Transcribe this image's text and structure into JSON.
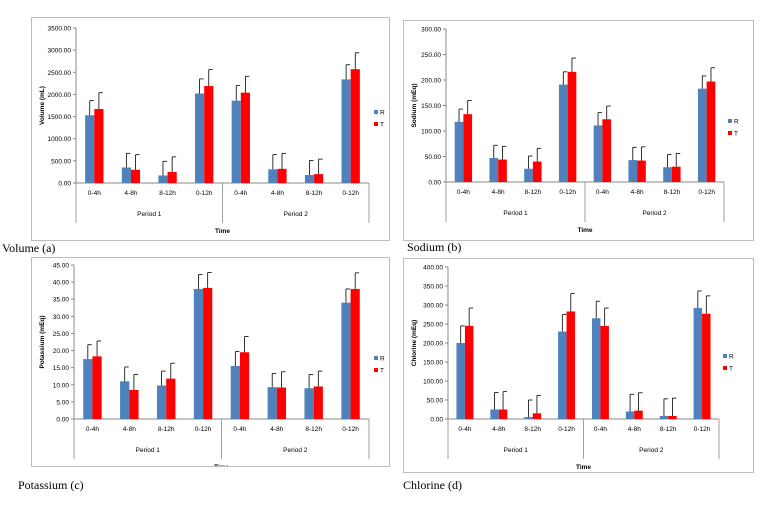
{
  "colors": {
    "R": "#4f81bd",
    "T": "#ff0000",
    "error_bar": "#000000",
    "axis": "#888888"
  },
  "captions": {
    "a": "Volume (a)",
    "b": "Sodium (b)",
    "c": "Potassium (c)",
    "d": "Chlorine (d)"
  },
  "chart_data": [
    {
      "type": "bar",
      "panel": "a",
      "ylabel": "Volume (mL)",
      "xlabel": "Time",
      "ylim": [
        0,
        3500
      ],
      "yticks": [
        "0.00",
        "500.00",
        "1000.00",
        "1500.00",
        "2000.00",
        "2500.00",
        "3000.00",
        "3500.00"
      ],
      "ytick_values": [
        0,
        500,
        1000,
        1500,
        2000,
        2500,
        3000,
        3500
      ],
      "categories": [
        "0-4h",
        "4-8h",
        "8-12h",
        "0-12h",
        "0-4h",
        "4-8h",
        "8-12h",
        "0-12h"
      ],
      "groups": [
        {
          "label": "Period 1",
          "span": [
            0,
            3
          ]
        },
        {
          "label": "Period 2",
          "span": [
            4,
            7
          ]
        }
      ],
      "legend": [
        "R",
        "T"
      ],
      "legend_position": "right",
      "series": [
        {
          "name": "R",
          "values": [
            1530,
            350,
            170,
            2020,
            1860,
            310,
            180,
            2340
          ],
          "error": [
            330,
            320,
            320,
            330,
            340,
            330,
            330,
            330
          ]
        },
        {
          "name": "T",
          "values": [
            1670,
            300,
            250,
            2190,
            2040,
            320,
            200,
            2570
          ],
          "error": [
            370,
            340,
            340,
            370,
            370,
            350,
            340,
            370
          ]
        }
      ]
    },
    {
      "type": "bar",
      "panel": "b",
      "ylabel": "Sodium (mEq)",
      "xlabel": "Time",
      "ylim": [
        0,
        300
      ],
      "yticks": [
        "0.00",
        "50.00",
        "100.00",
        "150.00",
        "200.00",
        "250.00",
        "300.00"
      ],
      "ytick_values": [
        0,
        50,
        100,
        150,
        200,
        250,
        300
      ],
      "categories": [
        "0-4h",
        "4-8h",
        "8-12h",
        "0-12h",
        "0-4h",
        "4-8h",
        "8-12h",
        "0-12h"
      ],
      "groups": [
        {
          "label": "Period 1",
          "span": [
            0,
            3
          ]
        },
        {
          "label": "Period 2",
          "span": [
            4,
            7
          ]
        }
      ],
      "legend": [
        "R",
        "T"
      ],
      "legend_position": "right",
      "series": [
        {
          "name": "R",
          "values": [
            118,
            47,
            26,
            191,
            111,
            43,
            29,
            183
          ],
          "error": [
            25,
            25,
            25,
            25,
            25,
            25,
            25,
            25
          ]
        },
        {
          "name": "T",
          "values": [
            133,
            44,
            40,
            216,
            123,
            42,
            30,
            197
          ],
          "error": [
            27,
            26,
            26,
            27,
            26,
            27,
            26,
            27
          ]
        }
      ]
    },
    {
      "type": "bar",
      "panel": "c",
      "ylabel": "Potassium (mEq)",
      "xlabel": "Time",
      "ylim": [
        0,
        45
      ],
      "yticks": [
        "0.00",
        "5.00",
        "10.00",
        "15.00",
        "20.00",
        "25.00",
        "30.00",
        "35.00",
        "40.00",
        "45.00"
      ],
      "ytick_values": [
        0,
        5,
        10,
        15,
        20,
        25,
        30,
        35,
        40,
        45
      ],
      "categories": [
        "0-4h",
        "4-8h",
        "8-12h",
        "0-12h",
        "0-4h",
        "4-8h",
        "8-12h",
        "0-12h"
      ],
      "groups": [
        {
          "label": "Period 1",
          "span": [
            0,
            3
          ]
        },
        {
          "label": "Period 2",
          "span": [
            4,
            7
          ]
        }
      ],
      "legend": [
        "R",
        "T"
      ],
      "legend_position": "right",
      "series": [
        {
          "name": "R",
          "values": [
            17.5,
            11,
            9.8,
            38,
            15.5,
            9.3,
            9,
            34
          ],
          "error": [
            4.2,
            4.2,
            4.2,
            4.2,
            4.2,
            4,
            4,
            4
          ]
        },
        {
          "name": "T",
          "values": [
            18.3,
            8.5,
            11.8,
            38.3,
            19.5,
            9.2,
            9.5,
            38
          ],
          "error": [
            4.5,
            4.5,
            4.5,
            4.5,
            4.6,
            4.6,
            4.5,
            4.7
          ]
        }
      ]
    },
    {
      "type": "bar",
      "panel": "d",
      "ylabel": "Chlorine (mEq)",
      "xlabel": "Time",
      "ylim": [
        0,
        400
      ],
      "yticks": [
        "0.00",
        "50.00",
        "100.00",
        "150.00",
        "200.00",
        "250.00",
        "300.00",
        "350.00",
        "400.00"
      ],
      "ytick_values": [
        0,
        50,
        100,
        150,
        200,
        250,
        300,
        350,
        400
      ],
      "categories": [
        "0-4h",
        "4-8h",
        "8-12h",
        "0-12h",
        "0-4h",
        "4-8h",
        "8-12h",
        "0-12h"
      ],
      "groups": [
        {
          "label": "Period 1",
          "span": [
            0,
            3
          ]
        },
        {
          "label": "Period 2",
          "span": [
            4,
            7
          ]
        }
      ],
      "legend": [
        "R",
        "T"
      ],
      "legend_position": "right",
      "series": [
        {
          "name": "R",
          "values": [
            200,
            25,
            5,
            230,
            265,
            20,
            8,
            292
          ],
          "error": [
            45,
            45,
            45,
            45,
            45,
            45,
            45,
            45
          ]
        },
        {
          "name": "T",
          "values": [
            245,
            25,
            15,
            283,
            245,
            22,
            8,
            277
          ],
          "error": [
            47,
            47,
            47,
            47,
            47,
            47,
            47,
            47
          ]
        }
      ]
    }
  ]
}
